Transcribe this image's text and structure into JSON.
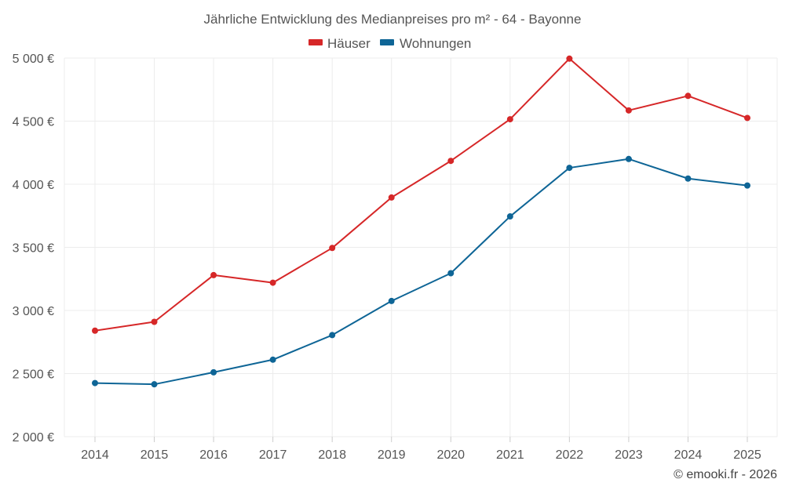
{
  "chart_data": {
    "type": "line",
    "title": "Jährliche Entwicklung des Medianpreises pro m² - 64 - Bayonne",
    "xlabel": "",
    "ylabel": "",
    "categories": [
      "2014",
      "2015",
      "2016",
      "2017",
      "2018",
      "2019",
      "2020",
      "2021",
      "2022",
      "2023",
      "2024",
      "2025"
    ],
    "ylim": [
      2000,
      5000
    ],
    "y_ticks": [
      2000,
      2500,
      3000,
      3500,
      4000,
      4500,
      5000
    ],
    "y_tick_labels": [
      "2 000 €",
      "2 500 €",
      "3 000 €",
      "3 500 €",
      "4 000 €",
      "4 500 €",
      "5 000 €"
    ],
    "grid": true,
    "legend_position": "top-center",
    "series": [
      {
        "name": "Häuser",
        "color": "#d62728",
        "values": [
          2840,
          2910,
          3280,
          3220,
          3495,
          3895,
          4185,
          4515,
          4995,
          4585,
          4700,
          4525
        ]
      },
      {
        "name": "Wohnungen",
        "color": "#0e6596",
        "values": [
          2425,
          2415,
          2510,
          2610,
          2805,
          3075,
          3295,
          3745,
          4130,
          4200,
          4045,
          3990
        ]
      }
    ],
    "footer": "© emooki.fr - 2026"
  }
}
